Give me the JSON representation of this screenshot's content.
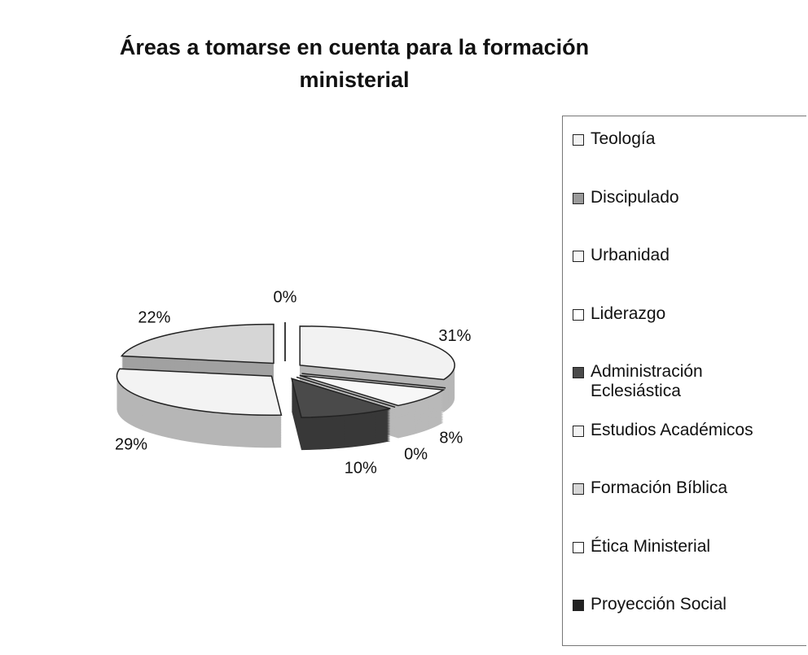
{
  "chart_data": {
    "type": "pie",
    "title": "Áreas a tomarse en cuenta para la formación ministerial",
    "categories": [
      "Teología",
      "Discipulado",
      "Urbanidad",
      "Liderazgo",
      "Administración Eclesiástica",
      "Estudios Académicos",
      "Formación Bíblica",
      "Ética Ministerial",
      "Proyección Social"
    ],
    "values": [
      31,
      0,
      8,
      0,
      10,
      29,
      22,
      0,
      0
    ],
    "value_labels": [
      "31%",
      null,
      "8%",
      "0%",
      "10%",
      "29%",
      "22%",
      "0%",
      null
    ],
    "colors": [
      "#f2f2f2",
      "#9a9a9a",
      "#f7f7f7",
      "#ffffff",
      "#4a4a4a",
      "#f3f3f3",
      "#d6d6d6",
      "#ffffff",
      "#222222"
    ]
  }
}
